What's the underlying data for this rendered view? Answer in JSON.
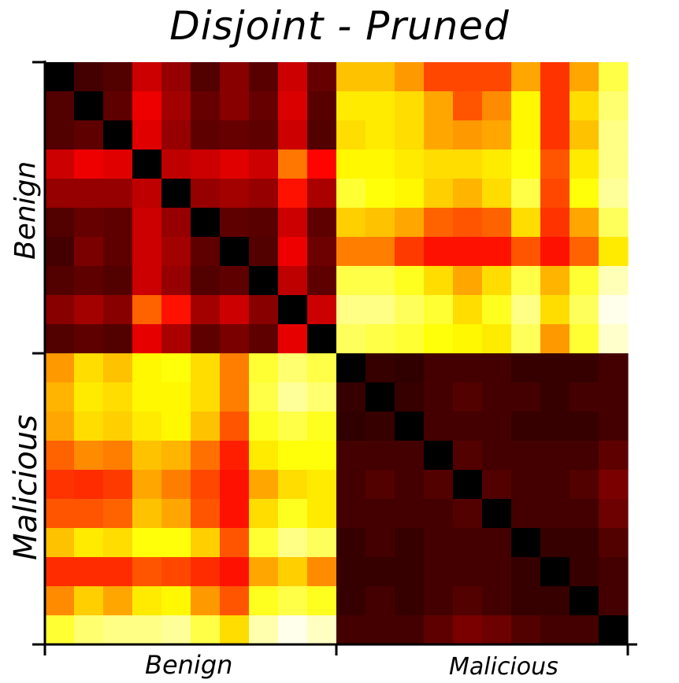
{
  "chart_data": {
    "type": "heatmap",
    "title": "Disjoint - Pruned",
    "categories": [
      "Benign",
      "Malicious"
    ],
    "xlabel": "",
    "ylabel": "",
    "colormap": "hot",
    "value_range": [
      0,
      1
    ],
    "size": 20,
    "values": [
      [
        0.0,
        0.1,
        0.12,
        0.3,
        0.22,
        0.12,
        0.2,
        0.13,
        0.3,
        0.15,
        0.66,
        0.66,
        0.6,
        0.48,
        0.48,
        0.48,
        0.62,
        0.45,
        0.62,
        0.82
      ],
      [
        0.12,
        0.0,
        0.14,
        0.35,
        0.24,
        0.15,
        0.2,
        0.15,
        0.32,
        0.13,
        0.72,
        0.72,
        0.7,
        0.62,
        0.5,
        0.58,
        0.74,
        0.45,
        0.7,
        0.86
      ],
      [
        0.12,
        0.14,
        0.0,
        0.33,
        0.22,
        0.14,
        0.15,
        0.14,
        0.3,
        0.12,
        0.7,
        0.72,
        0.7,
        0.62,
        0.6,
        0.62,
        0.74,
        0.45,
        0.66,
        0.88
      ],
      [
        0.3,
        0.35,
        0.33,
        0.0,
        0.28,
        0.3,
        0.33,
        0.3,
        0.55,
        0.38,
        0.74,
        0.74,
        0.72,
        0.7,
        0.7,
        0.72,
        0.76,
        0.5,
        0.72,
        0.88
      ],
      [
        0.22,
        0.22,
        0.22,
        0.28,
        0.0,
        0.22,
        0.24,
        0.22,
        0.4,
        0.25,
        0.8,
        0.76,
        0.74,
        0.68,
        0.64,
        0.7,
        0.82,
        0.48,
        0.76,
        0.9
      ],
      [
        0.12,
        0.15,
        0.14,
        0.3,
        0.22,
        0.0,
        0.14,
        0.13,
        0.3,
        0.14,
        0.68,
        0.66,
        0.62,
        0.52,
        0.5,
        0.52,
        0.7,
        0.45,
        0.62,
        0.84
      ],
      [
        0.1,
        0.18,
        0.14,
        0.3,
        0.24,
        0.14,
        0.0,
        0.12,
        0.35,
        0.16,
        0.56,
        0.56,
        0.46,
        0.4,
        0.4,
        0.4,
        0.5,
        0.4,
        0.52,
        0.72
      ],
      [
        0.12,
        0.14,
        0.12,
        0.3,
        0.22,
        0.12,
        0.14,
        0.0,
        0.28,
        0.14,
        0.82,
        0.82,
        0.78,
        0.7,
        0.62,
        0.7,
        0.82,
        0.64,
        0.8,
        0.93
      ],
      [
        0.2,
        0.24,
        0.2,
        0.52,
        0.4,
        0.24,
        0.3,
        0.2,
        0.0,
        0.3,
        0.88,
        0.88,
        0.84,
        0.8,
        0.7,
        0.78,
        0.88,
        0.7,
        0.84,
        0.98
      ],
      [
        0.12,
        0.14,
        0.12,
        0.34,
        0.25,
        0.14,
        0.18,
        0.14,
        0.34,
        0.0,
        0.84,
        0.82,
        0.8,
        0.76,
        0.74,
        0.72,
        0.84,
        0.6,
        0.8,
        0.95
      ],
      [
        0.6,
        0.7,
        0.66,
        0.74,
        0.76,
        0.7,
        0.56,
        0.8,
        0.86,
        0.82,
        0.0,
        0.08,
        0.07,
        0.1,
        0.1,
        0.1,
        0.08,
        0.08,
        0.08,
        0.1
      ],
      [
        0.64,
        0.72,
        0.7,
        0.74,
        0.74,
        0.7,
        0.56,
        0.82,
        0.9,
        0.86,
        0.08,
        0.0,
        0.08,
        0.1,
        0.12,
        0.1,
        0.1,
        0.08,
        0.1,
        0.1
      ],
      [
        0.62,
        0.7,
        0.68,
        0.72,
        0.74,
        0.66,
        0.5,
        0.78,
        0.82,
        0.78,
        0.07,
        0.08,
        0.0,
        0.1,
        0.1,
        0.1,
        0.08,
        0.08,
        0.08,
        0.1
      ],
      [
        0.52,
        0.58,
        0.56,
        0.66,
        0.64,
        0.54,
        0.42,
        0.72,
        0.76,
        0.76,
        0.1,
        0.1,
        0.1,
        0.0,
        0.12,
        0.1,
        0.1,
        0.1,
        0.1,
        0.14
      ],
      [
        0.45,
        0.44,
        0.46,
        0.62,
        0.56,
        0.48,
        0.4,
        0.62,
        0.7,
        0.72,
        0.1,
        0.12,
        0.1,
        0.12,
        0.0,
        0.12,
        0.1,
        0.1,
        0.12,
        0.18
      ],
      [
        0.5,
        0.5,
        0.52,
        0.66,
        0.62,
        0.5,
        0.4,
        0.7,
        0.78,
        0.72,
        0.1,
        0.1,
        0.1,
        0.1,
        0.12,
        0.0,
        0.1,
        0.1,
        0.1,
        0.16
      ],
      [
        0.66,
        0.72,
        0.7,
        0.76,
        0.76,
        0.68,
        0.5,
        0.8,
        0.88,
        0.84,
        0.08,
        0.1,
        0.08,
        0.1,
        0.1,
        0.1,
        0.0,
        0.08,
        0.08,
        0.12
      ],
      [
        0.44,
        0.44,
        0.44,
        0.5,
        0.48,
        0.44,
        0.4,
        0.62,
        0.68,
        0.58,
        0.08,
        0.08,
        0.08,
        0.1,
        0.1,
        0.1,
        0.08,
        0.0,
        0.08,
        0.1
      ],
      [
        0.58,
        0.68,
        0.62,
        0.72,
        0.74,
        0.6,
        0.5,
        0.78,
        0.82,
        0.78,
        0.08,
        0.1,
        0.08,
        0.1,
        0.12,
        0.1,
        0.08,
        0.08,
        0.0,
        0.1
      ],
      [
        0.8,
        0.86,
        0.88,
        0.88,
        0.9,
        0.82,
        0.7,
        0.92,
        0.98,
        0.94,
        0.1,
        0.1,
        0.1,
        0.14,
        0.18,
        0.16,
        0.12,
        0.1,
        0.1,
        0.0
      ]
    ]
  },
  "labels": {
    "title": "Disjoint - Pruned",
    "y_top": "Benign",
    "y_bottom": "Malicious",
    "x_left": "Benign",
    "x_right": "Malicious"
  }
}
